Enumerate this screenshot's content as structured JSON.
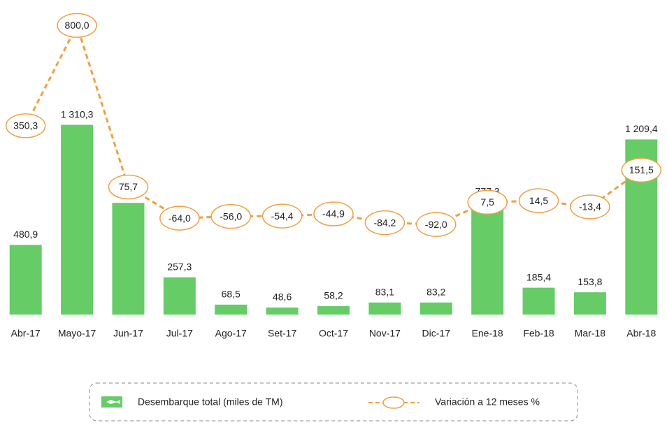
{
  "chart_data": {
    "type": "bar+line",
    "categories": [
      "Abr-17",
      "Mayo-17",
      "Jun-17",
      "Jul-17",
      "Ago-17",
      "Set-17",
      "Oct-17",
      "Nov-17",
      "Dic-17",
      "Ene-18",
      "Feb-18",
      "Mar-18",
      "Abr-18"
    ],
    "series": [
      {
        "name": "Desembarque total (miles de TM)",
        "type": "bar",
        "color": "#66cc66",
        "values": [
          480.9,
          1310.3,
          771.5,
          257.3,
          68.5,
          48.6,
          58.2,
          83.1,
          83.2,
          777.3,
          185.4,
          153.8,
          1209.4
        ],
        "value_labels": [
          "480,9",
          "1 310,3",
          "771,5",
          "257,3",
          "68,5",
          "48,6",
          "58,2",
          "83,1",
          "83,2",
          "777,3",
          "185,4",
          "153,8",
          "1 209,4"
        ]
      },
      {
        "name": "Variación a 12 meses %",
        "type": "line",
        "axis": "y2",
        "color": "#f0a040",
        "values": [
          350.3,
          800.0,
          75.7,
          -64.0,
          -56.0,
          -54.4,
          -44.9,
          -84.2,
          -92.0,
          7.5,
          14.5,
          -13.4,
          151.5
        ],
        "value_labels": [
          "350,3",
          "800,0",
          "75,7",
          "-64,0",
          "-56,0",
          "-54,4",
          "-44,9",
          "-84,2",
          "-92,0",
          "7,5",
          "14,5",
          "-13,4",
          "151,5"
        ]
      }
    ],
    "ylim": [
      0,
      1400
    ],
    "y2lim": [
      -120,
      820
    ],
    "legend": "bottom"
  }
}
